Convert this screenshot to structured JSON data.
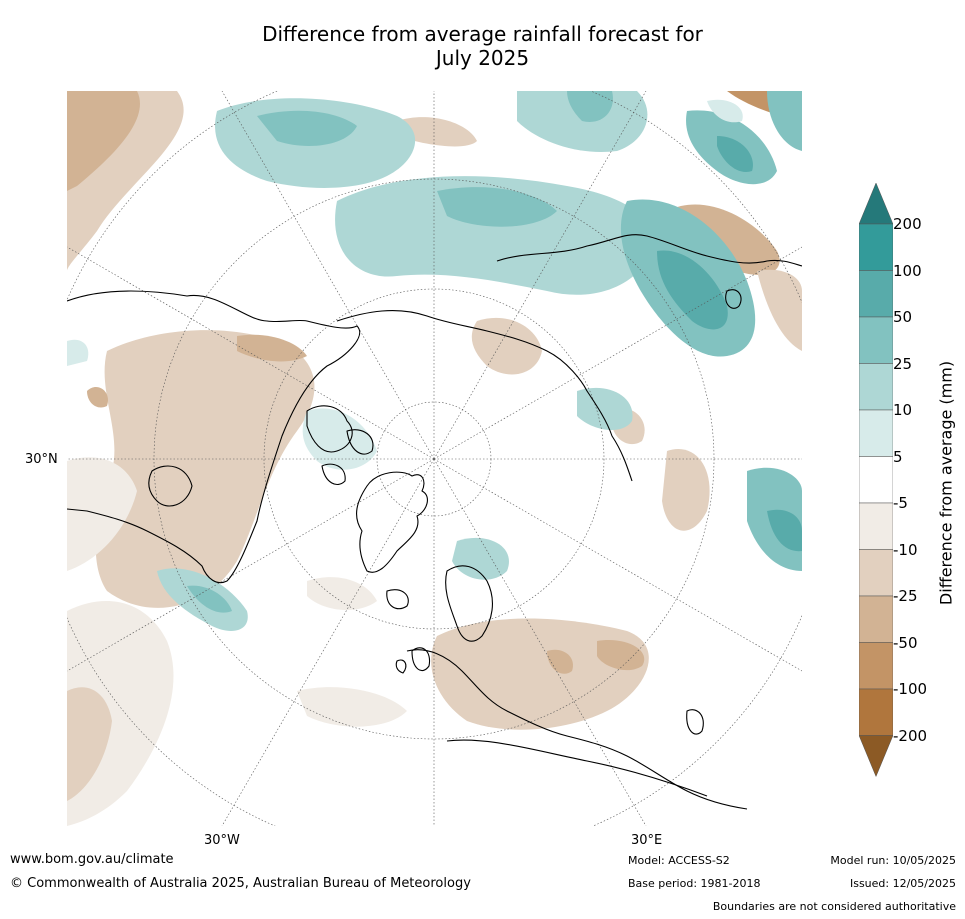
{
  "title": {
    "line1": "Difference from average rainfall forecast for",
    "line2": "July 2025"
  },
  "map": {
    "projection": "north-polar-stereographic",
    "graticule_labels": {
      "lat_30n": "30°N",
      "lon_30w": "30°W",
      "lon_30e": "30°E"
    }
  },
  "legend": {
    "label": "Difference from average (mm)",
    "ticks": [
      "200",
      "100",
      "50",
      "25",
      "10",
      "5",
      "-5",
      "-10",
      "-25",
      "-50",
      "-100",
      "-200"
    ],
    "bins": [
      {
        "range": ">200",
        "color": "#25797a"
      },
      {
        "range": "100 to 200",
        "color": "#339b9a"
      },
      {
        "range": "50 to 100",
        "color": "#58abaa"
      },
      {
        "range": "25 to 50",
        "color": "#82c2c0"
      },
      {
        "range": "10 to 25",
        "color": "#aed7d5"
      },
      {
        "range": "5 to 10",
        "color": "#d7ebea"
      },
      {
        "range": "-5 to 5",
        "color": "#ffffff"
      },
      {
        "range": "-10 to -5",
        "color": "#f1ece6"
      },
      {
        "range": "-25 to -10",
        "color": "#e2d0bf"
      },
      {
        "range": "-50 to -25",
        "color": "#d2b394"
      },
      {
        "range": "-100 to -50",
        "color": "#c39466"
      },
      {
        "range": "-200 to -100",
        "color": "#b0763d"
      },
      {
        "range": "<-200",
        "color": "#8c5a25"
      }
    ]
  },
  "footer": {
    "website": "www.bom.gov.au/climate",
    "copyright": "© Commonwealth of Australia 2025, Australian Bureau of Meteorology",
    "model": "Model: ACCESS-S2",
    "base_period": "Base period: 1981-2018",
    "model_run": "Model run: 10/05/2025",
    "issued": "Issued: 12/05/2025",
    "disclaimer": "Boundaries are not considered authoritative"
  }
}
